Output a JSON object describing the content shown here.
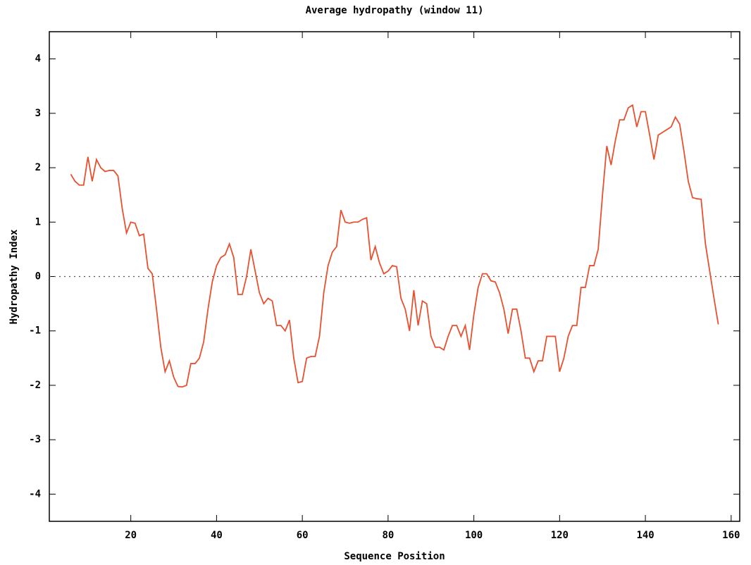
{
  "chart_data": {
    "type": "line",
    "title": "Average hydropathy (window 11)",
    "x_label": "Sequence Position",
    "y_label": "Hydropathy Index",
    "xlim": [
      1,
      162
    ],
    "ylim": [
      -4.5,
      4.5
    ],
    "xticks": [
      20,
      40,
      60,
      80,
      100,
      120,
      140,
      160
    ],
    "yticks": [
      -4,
      -3,
      -2,
      -1,
      0,
      1,
      2,
      3,
      4
    ],
    "zero_line": true,
    "series": [
      {
        "color": "#e8502f",
        "x": [
          6,
          7,
          8,
          9,
          10,
          11,
          12,
          13,
          14,
          15,
          16,
          17,
          18,
          19,
          20,
          21,
          22,
          23,
          24,
          25,
          26,
          27,
          28,
          29,
          30,
          31,
          32,
          33,
          34,
          35,
          36,
          37,
          38,
          39,
          40,
          41,
          42,
          43,
          44,
          45,
          46,
          47,
          48,
          49,
          50,
          51,
          52,
          53,
          54,
          55,
          56,
          57,
          58,
          59,
          60,
          61,
          62,
          63,
          64,
          65,
          66,
          67,
          68,
          69,
          70,
          71,
          72,
          73,
          74,
          75,
          76,
          77,
          78,
          79,
          80,
          81,
          82,
          83,
          84,
          85,
          86,
          87,
          88,
          89,
          90,
          91,
          92,
          93,
          94,
          95,
          96,
          97,
          98,
          99,
          100,
          101,
          102,
          103,
          104,
          105,
          106,
          107,
          108,
          109,
          110,
          111,
          112,
          113,
          114,
          115,
          116,
          117,
          118,
          119,
          120,
          121,
          122,
          123,
          124,
          125,
          126,
          127,
          128,
          129,
          130,
          131,
          132,
          133,
          134,
          135,
          136,
          137,
          138,
          139,
          140,
          141,
          142,
          143,
          144,
          145,
          146,
          147,
          148,
          149,
          150,
          151,
          152,
          153,
          154,
          155,
          156,
          157
        ],
        "values": [
          1.88,
          1.75,
          1.68,
          1.68,
          2.2,
          1.75,
          2.15,
          2.0,
          1.93,
          1.95,
          1.95,
          1.85,
          1.25,
          0.8,
          1.0,
          0.98,
          0.75,
          0.78,
          0.15,
          0.05,
          -0.6,
          -1.3,
          -1.75,
          -1.55,
          -1.85,
          -2.02,
          -2.03,
          -2.0,
          -1.6,
          -1.6,
          -1.5,
          -1.2,
          -0.6,
          -0.1,
          0.2,
          0.35,
          0.4,
          0.6,
          0.35,
          -0.33,
          -0.33,
          0.0,
          0.5,
          0.1,
          -0.3,
          -0.5,
          -0.4,
          -0.45,
          -0.9,
          -0.9,
          -1.0,
          -0.8,
          -1.5,
          -1.95,
          -1.93,
          -1.5,
          -1.47,
          -1.47,
          -1.1,
          -0.3,
          0.2,
          0.45,
          0.55,
          1.22,
          1.0,
          0.98,
          1.0,
          1.0,
          1.05,
          1.08,
          0.3,
          0.55,
          0.25,
          0.05,
          0.1,
          0.2,
          0.18,
          -0.4,
          -0.6,
          -1.0,
          -0.25,
          -0.9,
          -0.45,
          -0.5,
          -1.1,
          -1.3,
          -1.3,
          -1.35,
          -1.1,
          -0.9,
          -0.9,
          -1.1,
          -0.9,
          -1.35,
          -0.7,
          -0.2,
          0.05,
          0.05,
          -0.08,
          -0.1,
          -0.3,
          -0.6,
          -1.05,
          -0.6,
          -0.6,
          -1.0,
          -1.5,
          -1.5,
          -1.75,
          -1.55,
          -1.55,
          -1.1,
          -1.1,
          -1.1,
          -1.75,
          -1.5,
          -1.1,
          -0.9,
          -0.9,
          -0.2,
          -0.2,
          0.2,
          0.2,
          0.5,
          1.5,
          2.4,
          2.05,
          2.5,
          2.88,
          2.88,
          3.1,
          3.15,
          2.75,
          3.03,
          3.03,
          2.6,
          2.15,
          2.6,
          2.65,
          2.7,
          2.75,
          2.93,
          2.8,
          2.3,
          1.75,
          1.45,
          1.43,
          1.42,
          0.6,
          0.1,
          -0.4,
          -0.88
        ]
      }
    ]
  }
}
